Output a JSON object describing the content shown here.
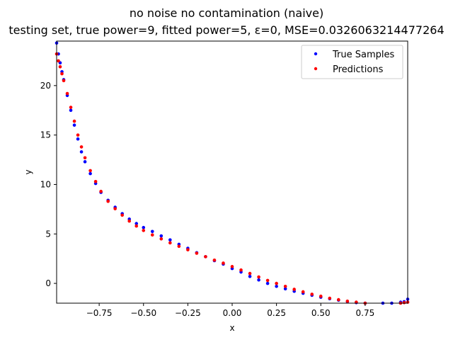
{
  "chart_data": {
    "type": "scatter",
    "title": "no noise no contamination (naive)",
    "subtitle": "testing set, true power=9, fitted power=5, ε=0, MSE=0.0326063214477264",
    "xlabel": "x",
    "ylabel": "y",
    "xlim": [
      -0.99,
      0.99
    ],
    "ylim": [
      -2.0,
      24.5
    ],
    "xticks": [
      -0.75,
      -0.5,
      -0.25,
      0.0,
      0.25,
      0.5,
      0.75
    ],
    "xtick_labels": [
      "−0.75",
      "−0.50",
      "−0.25",
      "0.00",
      "0.25",
      "0.50",
      "0.75"
    ],
    "yticks": [
      0,
      5,
      10,
      15,
      20
    ],
    "ytick_labels": [
      "0",
      "5",
      "10",
      "15",
      "20"
    ],
    "grid": false,
    "legend_position": "top-right",
    "series": [
      {
        "name": "True Samples",
        "color": "#0000ff",
        "x": [
          -0.99,
          -0.98,
          -0.97,
          -0.96,
          -0.95,
          -0.93,
          -0.91,
          -0.89,
          -0.87,
          -0.85,
          -0.83,
          -0.8,
          -0.77,
          -0.74,
          -0.7,
          -0.66,
          -0.62,
          -0.58,
          -0.54,
          -0.5,
          -0.45,
          -0.4,
          -0.35,
          -0.3,
          -0.25,
          -0.2,
          -0.15,
          -0.1,
          -0.05,
          0.0,
          0.05,
          0.1,
          0.15,
          0.2,
          0.25,
          0.3,
          0.35,
          0.4,
          0.45,
          0.5,
          0.55,
          0.6,
          0.65,
          0.7,
          0.75,
          0.8,
          0.85,
          0.9,
          0.95,
          0.97,
          0.99
        ],
        "y": [
          24.3,
          23.2,
          22.3,
          21.4,
          20.6,
          19.0,
          17.5,
          16.0,
          14.6,
          13.3,
          12.3,
          11.1,
          10.1,
          9.2,
          8.4,
          7.7,
          7.05,
          6.5,
          6.05,
          5.65,
          5.25,
          4.8,
          4.4,
          3.95,
          3.55,
          3.1,
          2.7,
          2.3,
          1.95,
          1.5,
          1.15,
          0.7,
          0.35,
          0.0,
          -0.3,
          -0.55,
          -0.8,
          -1.0,
          -1.2,
          -1.4,
          -1.55,
          -1.7,
          -1.85,
          -1.95,
          -2.0,
          -2.05,
          -2.0,
          -2.0,
          -1.9,
          -1.85,
          -1.6
        ]
      },
      {
        "name": "Predictions",
        "color": "#ff0000",
        "x": [
          -0.99,
          -0.98,
          -0.97,
          -0.96,
          -0.95,
          -0.93,
          -0.91,
          -0.89,
          -0.87,
          -0.85,
          -0.83,
          -0.8,
          -0.77,
          -0.74,
          -0.7,
          -0.66,
          -0.62,
          -0.58,
          -0.54,
          -0.5,
          -0.45,
          -0.4,
          -0.35,
          -0.3,
          -0.25,
          -0.2,
          -0.15,
          -0.1,
          -0.05,
          0.0,
          0.05,
          0.1,
          0.15,
          0.2,
          0.25,
          0.3,
          0.35,
          0.4,
          0.45,
          0.5,
          0.55,
          0.6,
          0.65,
          0.7,
          0.75,
          0.8,
          0.85,
          0.9,
          0.95,
          0.97,
          0.99
        ],
        "y": [
          23.2,
          22.5,
          21.9,
          21.2,
          20.5,
          19.2,
          17.8,
          16.4,
          15.0,
          13.8,
          12.7,
          11.4,
          10.3,
          9.3,
          8.3,
          7.55,
          6.9,
          6.3,
          5.8,
          5.35,
          4.9,
          4.5,
          4.1,
          3.75,
          3.4,
          3.05,
          2.7,
          2.35,
          2.05,
          1.7,
          1.35,
          1.0,
          0.65,
          0.3,
          0.0,
          -0.3,
          -0.6,
          -0.85,
          -1.1,
          -1.3,
          -1.5,
          -1.65,
          -1.8,
          -1.9,
          -2.0,
          -2.05,
          -2.05,
          -2.05,
          -2.0,
          -1.95,
          -1.9
        ]
      }
    ]
  }
}
